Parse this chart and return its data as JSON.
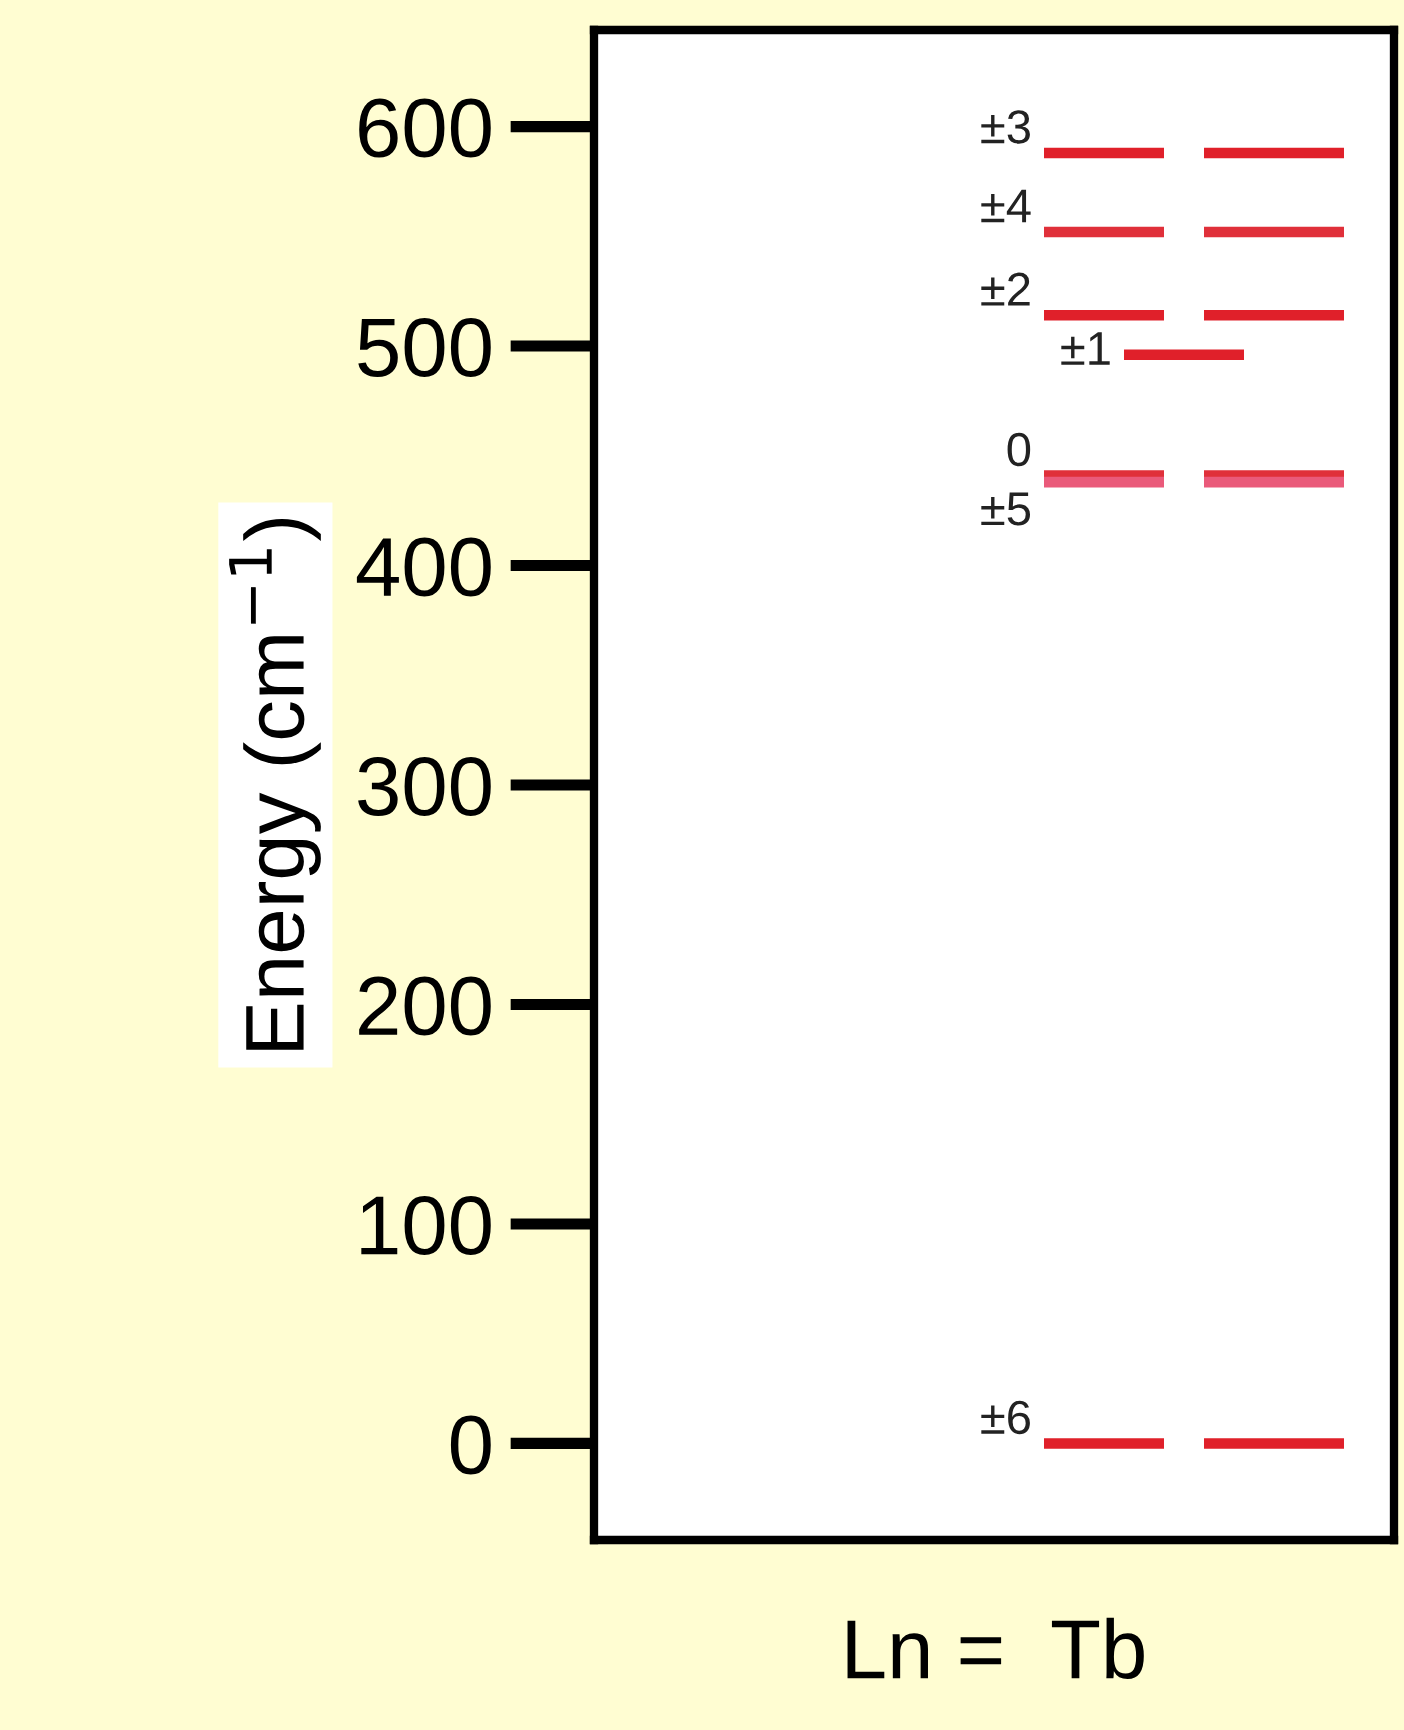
{
  "chart_data": {
    "type": "line",
    "ylabel": "Energy (cm$^{−1}$)",
    "xlabel": "Ln =  Tb",
    "categories": [
      null,
      null,
      null,
      null,
      null,
      null,
      null,
      null,
      null,
      null,
      null,
      null,
      null,
      null,
      null,
      null,
      null,
      null,
      null,
      null,
      null,
      null,
      null,
      null,
      null,
      null,
      null,
      null,
      null,
      null,
      null,
      null,
      null,
      null,
      null,
      null,
      null,
      null,
      null,
      null
    ],
    "ylim": [
      -44,
      644
    ],
    "yticks": [
      0,
      100,
      200,
      300,
      400,
      500,
      600
    ],
    "grid": false,
    "legend": "right",
    "tick_labels": "y",
    "line_style": "solid",
    "series": [
      {
        "name": "±3",
        "color": "#e0202a",
        "values": [
          null,
          null,
          null,
          null,
          null,
          null,
          null,
          null,
          null,
          null,
          null,
          null,
          null,
          null,
          null,
          null,
          null,
          null,
          null,
          null,
          null,
          null,
          588,
          588,
          588,
          588,
          588,
          588,
          588,
          null,
          588,
          588,
          588,
          588,
          588,
          588,
          588,
          588,
          null,
          null
        ]
      },
      {
        "name": "±4",
        "color": "#e0303a",
        "values": [
          null,
          null,
          null,
          null,
          null,
          null,
          null,
          null,
          null,
          null,
          null,
          null,
          null,
          null,
          null,
          null,
          null,
          null,
          null,
          null,
          null,
          null,
          552,
          552,
          552,
          552,
          552,
          552,
          552,
          null,
          552,
          552,
          552,
          552,
          552,
          552,
          552,
          552,
          null,
          null
        ]
      },
      {
        "name": "±2",
        "color": "#e0202a",
        "values": [
          null,
          null,
          null,
          null,
          null,
          null,
          null,
          null,
          null,
          null,
          null,
          null,
          null,
          null,
          null,
          null,
          null,
          null,
          null,
          null,
          null,
          null,
          514,
          514,
          514,
          514,
          514,
          514,
          514,
          null,
          514,
          514,
          514,
          514,
          514,
          514,
          514,
          514,
          null,
          null
        ]
      },
      {
        "name": "±1",
        "color": "#e0202a",
        "values": [
          null,
          null,
          null,
          null,
          null,
          null,
          null,
          null,
          null,
          null,
          null,
          null,
          null,
          null,
          null,
          null,
          null,
          null,
          null,
          null,
          null,
          null,
          null,
          null,
          null,
          null,
          496,
          496,
          496,
          496,
          496,
          496,
          496,
          null,
          null,
          null,
          null,
          null,
          null,
          null
        ]
      },
      {
        "name": "0",
        "color": "#e0303a",
        "values": [
          null,
          null,
          null,
          null,
          null,
          null,
          null,
          null,
          null,
          null,
          null,
          null,
          null,
          null,
          null,
          null,
          null,
          null,
          null,
          null,
          null,
          null,
          441,
          441,
          441,
          441,
          441,
          441,
          441,
          null,
          441,
          441,
          441,
          441,
          441,
          441,
          441,
          441,
          null,
          null
        ]
      },
      {
        "name": "±5",
        "color": "#ea5a7a",
        "values": [
          null,
          null,
          null,
          null,
          null,
          null,
          null,
          null,
          null,
          null,
          null,
          null,
          null,
          null,
          null,
          null,
          null,
          null,
          null,
          null,
          null,
          null,
          438,
          438,
          438,
          438,
          438,
          438,
          438,
          null,
          438,
          438,
          438,
          438,
          438,
          438,
          438,
          438,
          null,
          null
        ]
      },
      {
        "name": "±6",
        "color": "#e0202a",
        "values": [
          null,
          null,
          null,
          null,
          null,
          null,
          null,
          null,
          null,
          null,
          null,
          null,
          null,
          null,
          null,
          null,
          null,
          null,
          null,
          null,
          null,
          null,
          0,
          0,
          0,
          0,
          0,
          0,
          0,
          null,
          0,
          0,
          0,
          0,
          0,
          0,
          0,
          0,
          null,
          null
        ]
      }
    ]
  }
}
